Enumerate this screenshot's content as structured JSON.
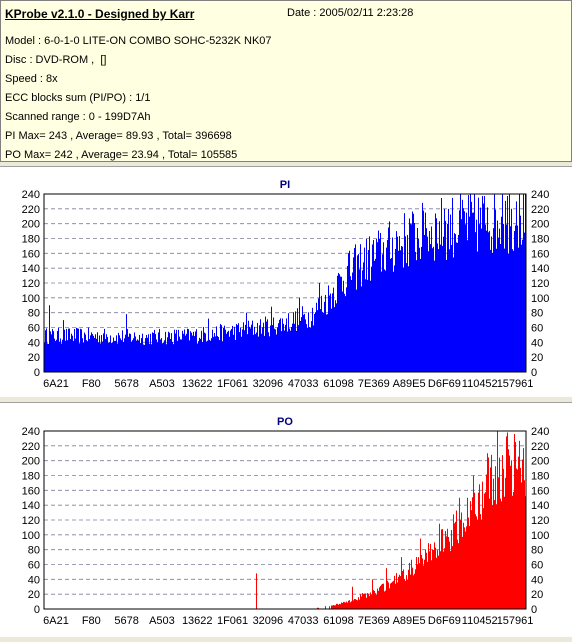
{
  "header": {
    "title": "KProbe v2.1.0 - Designed by Karr",
    "date": "Date : 2005/02/11 2:23:28",
    "lines": [
      "Model : 6-0-1-0 LITE-ON COMBO SOHC-5232K NK07",
      "Disc : DVD-ROM ,  []",
      "Speed : 8x",
      "ECC blocks sum (PI/PO) : 1/1",
      "Scanned range : 0 - 199D7Ah",
      "PI Max= 243 , Average= 89.93 , Total= 396698",
      "PO Max= 242 , Average= 23.94 , Total= 105585"
    ]
  },
  "chart_data": [
    {
      "type": "bar",
      "title": "PI",
      "color": "#0000ff",
      "ylim": [
        0,
        240
      ],
      "y_ticks": [
        0,
        20,
        40,
        60,
        80,
        100,
        120,
        140,
        160,
        180,
        200,
        220,
        240
      ],
      "x_tick_labels": [
        "6A21",
        "F80",
        "5678",
        "A503",
        "13622",
        "1F061",
        "32096",
        "47033",
        "61098",
        "7E369",
        "A89E5",
        "D6F69",
        "110452",
        "157961"
      ],
      "grid": true,
      "profile": [
        [
          0,
          50
        ],
        [
          0.1,
          50
        ],
        [
          0.2,
          48
        ],
        [
          0.3,
          50
        ],
        [
          0.38,
          55
        ],
        [
          0.45,
          62
        ],
        [
          0.5,
          68
        ],
        [
          0.55,
          78
        ],
        [
          0.58,
          95
        ],
        [
          0.62,
          130
        ],
        [
          0.66,
          152
        ],
        [
          0.7,
          165
        ],
        [
          0.74,
          180
        ],
        [
          0.78,
          190
        ],
        [
          0.82,
          198
        ],
        [
          0.86,
          203
        ],
        [
          0.9,
          208
        ],
        [
          0.95,
          212
        ],
        [
          1.0,
          212
        ]
      ],
      "spikes": [
        [
          0.01,
          90
        ],
        [
          0.04,
          70
        ],
        [
          0.17,
          78
        ],
        [
          0.34,
          72
        ],
        [
          0.42,
          80
        ],
        [
          0.47,
          88
        ],
        [
          0.53,
          100
        ],
        [
          0.57,
          120
        ],
        [
          0.63,
          160
        ],
        [
          0.69,
          175
        ],
        [
          0.73,
          190
        ],
        [
          0.76,
          200
        ],
        [
          0.79,
          215
        ],
        [
          0.83,
          220
        ],
        [
          0.86,
          218
        ],
        [
          0.92,
          222
        ],
        [
          0.95,
          243
        ],
        [
          0.965,
          240
        ],
        [
          0.98,
          230
        ]
      ]
    },
    {
      "type": "bar",
      "title": "PO",
      "color": "#ff0000",
      "ylim": [
        0,
        240
      ],
      "y_ticks": [
        0,
        20,
        40,
        60,
        80,
        100,
        120,
        140,
        160,
        180,
        200,
        220,
        240
      ],
      "x_tick_labels": [
        "6A21",
        "F80",
        "5678",
        "A503",
        "13622",
        "1F061",
        "32096",
        "47033",
        "61098",
        "7E369",
        "A89E5",
        "D6F69",
        "110452",
        "157961"
      ],
      "grid": true,
      "profile": [
        [
          0,
          0
        ],
        [
          0.55,
          0
        ],
        [
          0.58,
          3
        ],
        [
          0.62,
          8
        ],
        [
          0.66,
          18
        ],
        [
          0.7,
          28
        ],
        [
          0.74,
          45
        ],
        [
          0.78,
          65
        ],
        [
          0.82,
          88
        ],
        [
          0.86,
          115
        ],
        [
          0.9,
          150
        ],
        [
          0.93,
          180
        ],
        [
          0.96,
          200
        ],
        [
          0.98,
          205
        ],
        [
          1.0,
          180
        ]
      ],
      "spikes": [
        [
          0.44,
          48
        ],
        [
          0.64,
          30
        ],
        [
          0.68,
          40
        ],
        [
          0.71,
          55
        ],
        [
          0.74,
          70
        ],
        [
          0.78,
          95
        ],
        [
          0.82,
          115
        ],
        [
          0.86,
          150
        ],
        [
          0.89,
          180
        ],
        [
          0.92,
          210
        ],
        [
          0.94,
          242
        ],
        [
          0.96,
          238
        ],
        [
          0.975,
          236
        ]
      ]
    }
  ]
}
